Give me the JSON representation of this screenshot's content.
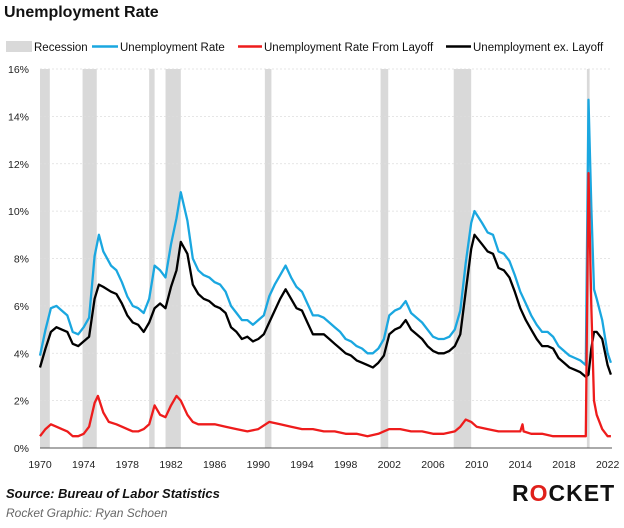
{
  "title": "Unemployment Rate",
  "source": "Source: Bureau of Labor Statistics",
  "credit": "Rocket Graphic: Ryan Schoen",
  "logo": {
    "text_before": "R",
    "text_o": "O",
    "text_after": "CKET",
    "accent": "#e0201b"
  },
  "colors": {
    "recession": "#d9d9d9",
    "unemployment_rate": "#1aa7e0",
    "from_layoff": "#ee1c1c",
    "ex_layoff": "#000000"
  },
  "chart_data": {
    "type": "line",
    "title": "Unemployment Rate",
    "xlabel": "",
    "ylabel": "",
    "xlim": [
      1970,
      2022.4
    ],
    "ylim": [
      0,
      16
    ],
    "y_ticks": [
      "0%",
      "2%",
      "4%",
      "6%",
      "8%",
      "10%",
      "12%",
      "14%",
      "16%"
    ],
    "x_ticks": [
      "1970",
      "1974",
      "1978",
      "1982",
      "1986",
      "1990",
      "1994",
      "1998",
      "2002",
      "2006",
      "2010",
      "2014",
      "2018",
      "2022"
    ],
    "grid": true,
    "legend": "top",
    "recessions": [
      [
        1970.0,
        1970.9
      ],
      [
        1973.9,
        1975.2
      ],
      [
        1980.0,
        1980.5
      ],
      [
        1981.5,
        1982.9
      ],
      [
        1990.6,
        1991.2
      ],
      [
        2001.2,
        2001.9
      ],
      [
        2007.9,
        2009.5
      ],
      [
        2020.1,
        2020.35
      ]
    ],
    "series": [
      {
        "name": "Recession",
        "kind": "band"
      },
      {
        "name": "Unemployment Rate",
        "points": [
          [
            1970.0,
            3.9
          ],
          [
            1970.5,
            5.0
          ],
          [
            1971.0,
            5.9
          ],
          [
            1971.5,
            6.0
          ],
          [
            1972.0,
            5.8
          ],
          [
            1972.5,
            5.6
          ],
          [
            1973.0,
            4.9
          ],
          [
            1973.5,
            4.8
          ],
          [
            1974.0,
            5.1
          ],
          [
            1974.5,
            5.5
          ],
          [
            1975.0,
            8.1
          ],
          [
            1975.4,
            9.0
          ],
          [
            1975.8,
            8.3
          ],
          [
            1976.5,
            7.7
          ],
          [
            1977.0,
            7.5
          ],
          [
            1977.5,
            7.0
          ],
          [
            1978.0,
            6.4
          ],
          [
            1978.5,
            6.0
          ],
          [
            1979.0,
            5.9
          ],
          [
            1979.5,
            5.7
          ],
          [
            1980.0,
            6.3
          ],
          [
            1980.5,
            7.7
          ],
          [
            1981.0,
            7.5
          ],
          [
            1981.5,
            7.2
          ],
          [
            1982.0,
            8.6
          ],
          [
            1982.5,
            9.7
          ],
          [
            1982.9,
            10.8
          ],
          [
            1983.5,
            9.6
          ],
          [
            1984.0,
            8.0
          ],
          [
            1984.5,
            7.5
          ],
          [
            1985.0,
            7.3
          ],
          [
            1985.5,
            7.2
          ],
          [
            1986.0,
            7.0
          ],
          [
            1986.5,
            6.9
          ],
          [
            1987.0,
            6.6
          ],
          [
            1987.5,
            6.0
          ],
          [
            1988.0,
            5.7
          ],
          [
            1988.5,
            5.4
          ],
          [
            1989.0,
            5.4
          ],
          [
            1989.5,
            5.2
          ],
          [
            1990.0,
            5.4
          ],
          [
            1990.5,
            5.6
          ],
          [
            1991.0,
            6.4
          ],
          [
            1991.5,
            6.9
          ],
          [
            1992.0,
            7.3
          ],
          [
            1992.5,
            7.7
          ],
          [
            1993.0,
            7.2
          ],
          [
            1993.5,
            6.8
          ],
          [
            1994.0,
            6.6
          ],
          [
            1994.5,
            6.1
          ],
          [
            1995.0,
            5.6
          ],
          [
            1995.5,
            5.6
          ],
          [
            1996.0,
            5.5
          ],
          [
            1996.5,
            5.3
          ],
          [
            1997.0,
            5.1
          ],
          [
            1997.5,
            4.9
          ],
          [
            1998.0,
            4.6
          ],
          [
            1998.5,
            4.5
          ],
          [
            1999.0,
            4.3
          ],
          [
            1999.5,
            4.2
          ],
          [
            2000.0,
            4.0
          ],
          [
            2000.5,
            4.0
          ],
          [
            2001.0,
            4.2
          ],
          [
            2001.5,
            4.6
          ],
          [
            2002.0,
            5.6
          ],
          [
            2002.5,
            5.8
          ],
          [
            2003.0,
            5.9
          ],
          [
            2003.5,
            6.2
          ],
          [
            2004.0,
            5.7
          ],
          [
            2004.5,
            5.5
          ],
          [
            2005.0,
            5.3
          ],
          [
            2005.5,
            5.0
          ],
          [
            2006.0,
            4.7
          ],
          [
            2006.5,
            4.6
          ],
          [
            2007.0,
            4.6
          ],
          [
            2007.5,
            4.7
          ],
          [
            2008.0,
            5.0
          ],
          [
            2008.5,
            5.8
          ],
          [
            2009.0,
            7.8
          ],
          [
            2009.5,
            9.5
          ],
          [
            2009.8,
            10.0
          ],
          [
            2010.5,
            9.5
          ],
          [
            2011.0,
            9.1
          ],
          [
            2011.5,
            9.0
          ],
          [
            2012.0,
            8.3
          ],
          [
            2012.5,
            8.2
          ],
          [
            2013.0,
            7.9
          ],
          [
            2013.5,
            7.3
          ],
          [
            2014.0,
            6.6
          ],
          [
            2014.5,
            6.1
          ],
          [
            2015.0,
            5.6
          ],
          [
            2015.5,
            5.2
          ],
          [
            2016.0,
            4.9
          ],
          [
            2016.5,
            4.9
          ],
          [
            2017.0,
            4.7
          ],
          [
            2017.5,
            4.3
          ],
          [
            2018.0,
            4.1
          ],
          [
            2018.5,
            3.9
          ],
          [
            2019.0,
            3.8
          ],
          [
            2019.5,
            3.7
          ],
          [
            2020.0,
            3.5
          ],
          [
            2020.25,
            14.7
          ],
          [
            2020.5,
            10.2
          ],
          [
            2020.75,
            6.7
          ],
          [
            2021.0,
            6.3
          ],
          [
            2021.5,
            5.4
          ],
          [
            2022.0,
            4.0
          ],
          [
            2022.3,
            3.6
          ]
        ]
      },
      {
        "name": "Unemployment Rate From Layoff",
        "points": [
          [
            1970.0,
            0.5
          ],
          [
            1970.5,
            0.8
          ],
          [
            1971.0,
            1.0
          ],
          [
            1971.5,
            0.9
          ],
          [
            1972.0,
            0.8
          ],
          [
            1972.5,
            0.7
          ],
          [
            1973.0,
            0.5
          ],
          [
            1973.5,
            0.5
          ],
          [
            1974.0,
            0.6
          ],
          [
            1974.5,
            0.9
          ],
          [
            1975.0,
            1.9
          ],
          [
            1975.3,
            2.2
          ],
          [
            1975.8,
            1.5
          ],
          [
            1976.3,
            1.1
          ],
          [
            1977.0,
            1.0
          ],
          [
            1977.5,
            0.9
          ],
          [
            1978.0,
            0.8
          ],
          [
            1978.5,
            0.7
          ],
          [
            1979.0,
            0.7
          ],
          [
            1979.5,
            0.8
          ],
          [
            1980.0,
            1.0
          ],
          [
            1980.5,
            1.8
          ],
          [
            1981.0,
            1.4
          ],
          [
            1981.5,
            1.3
          ],
          [
            1982.0,
            1.8
          ],
          [
            1982.5,
            2.2
          ],
          [
            1982.9,
            2.0
          ],
          [
            1983.5,
            1.4
          ],
          [
            1984.0,
            1.1
          ],
          [
            1984.5,
            1.0
          ],
          [
            1985.0,
            1.0
          ],
          [
            1986.0,
            1.0
          ],
          [
            1987.0,
            0.9
          ],
          [
            1988.0,
            0.8
          ],
          [
            1989.0,
            0.7
          ],
          [
            1990.0,
            0.8
          ],
          [
            1991.0,
            1.1
          ],
          [
            1992.0,
            1.0
          ],
          [
            1993.0,
            0.9
          ],
          [
            1994.0,
            0.8
          ],
          [
            1995.0,
            0.8
          ],
          [
            1996.0,
            0.7
          ],
          [
            1997.0,
            0.7
          ],
          [
            1998.0,
            0.6
          ],
          [
            1999.0,
            0.6
          ],
          [
            2000.0,
            0.5
          ],
          [
            2001.0,
            0.6
          ],
          [
            2002.0,
            0.8
          ],
          [
            2003.0,
            0.8
          ],
          [
            2004.0,
            0.7
          ],
          [
            2005.0,
            0.7
          ],
          [
            2006.0,
            0.6
          ],
          [
            2007.0,
            0.6
          ],
          [
            2008.0,
            0.7
          ],
          [
            2008.5,
            0.9
          ],
          [
            2009.0,
            1.2
          ],
          [
            2009.5,
            1.1
          ],
          [
            2010.0,
            0.9
          ],
          [
            2011.0,
            0.8
          ],
          [
            2012.0,
            0.7
          ],
          [
            2013.0,
            0.7
          ],
          [
            2014.0,
            0.7
          ],
          [
            2014.2,
            1.0
          ],
          [
            2014.3,
            0.7
          ],
          [
            2015.0,
            0.6
          ],
          [
            2016.0,
            0.6
          ],
          [
            2017.0,
            0.5
          ],
          [
            2018.0,
            0.5
          ],
          [
            2019.0,
            0.5
          ],
          [
            2020.0,
            0.5
          ],
          [
            2020.25,
            11.6
          ],
          [
            2020.5,
            6.0
          ],
          [
            2020.75,
            2.0
          ],
          [
            2021.0,
            1.4
          ],
          [
            2021.5,
            0.8
          ],
          [
            2022.0,
            0.5
          ],
          [
            2022.3,
            0.5
          ]
        ]
      },
      {
        "name": "Unemployment ex. Layoff",
        "points": [
          [
            1970.0,
            3.4
          ],
          [
            1970.5,
            4.2
          ],
          [
            1971.0,
            4.9
          ],
          [
            1971.5,
            5.1
          ],
          [
            1972.0,
            5.0
          ],
          [
            1972.5,
            4.9
          ],
          [
            1973.0,
            4.4
          ],
          [
            1973.5,
            4.3
          ],
          [
            1974.0,
            4.5
          ],
          [
            1974.5,
            4.7
          ],
          [
            1975.0,
            6.3
          ],
          [
            1975.4,
            6.9
          ],
          [
            1975.8,
            6.8
          ],
          [
            1976.5,
            6.6
          ],
          [
            1977.0,
            6.5
          ],
          [
            1977.5,
            6.1
          ],
          [
            1978.0,
            5.6
          ],
          [
            1978.5,
            5.3
          ],
          [
            1979.0,
            5.2
          ],
          [
            1979.5,
            4.9
          ],
          [
            1980.0,
            5.3
          ],
          [
            1980.5,
            5.9
          ],
          [
            1981.0,
            6.1
          ],
          [
            1981.5,
            5.9
          ],
          [
            1982.0,
            6.8
          ],
          [
            1982.5,
            7.5
          ],
          [
            1982.9,
            8.7
          ],
          [
            1983.5,
            8.2
          ],
          [
            1984.0,
            6.9
          ],
          [
            1984.5,
            6.5
          ],
          [
            1985.0,
            6.3
          ],
          [
            1985.5,
            6.2
          ],
          [
            1986.0,
            6.0
          ],
          [
            1986.5,
            5.9
          ],
          [
            1987.0,
            5.7
          ],
          [
            1987.5,
            5.1
          ],
          [
            1988.0,
            4.9
          ],
          [
            1988.5,
            4.6
          ],
          [
            1989.0,
            4.7
          ],
          [
            1989.5,
            4.5
          ],
          [
            1990.0,
            4.6
          ],
          [
            1990.5,
            4.8
          ],
          [
            1991.0,
            5.3
          ],
          [
            1991.5,
            5.8
          ],
          [
            1992.0,
            6.3
          ],
          [
            1992.5,
            6.7
          ],
          [
            1993.0,
            6.3
          ],
          [
            1993.5,
            5.9
          ],
          [
            1994.0,
            5.8
          ],
          [
            1994.5,
            5.3
          ],
          [
            1995.0,
            4.8
          ],
          [
            1995.5,
            4.8
          ],
          [
            1996.0,
            4.8
          ],
          [
            1996.5,
            4.6
          ],
          [
            1997.0,
            4.4
          ],
          [
            1997.5,
            4.2
          ],
          [
            1998.0,
            4.0
          ],
          [
            1998.5,
            3.9
          ],
          [
            1999.0,
            3.7
          ],
          [
            1999.5,
            3.6
          ],
          [
            2000.0,
            3.5
          ],
          [
            2000.5,
            3.4
          ],
          [
            2001.0,
            3.6
          ],
          [
            2001.5,
            3.9
          ],
          [
            2002.0,
            4.8
          ],
          [
            2002.5,
            5.0
          ],
          [
            2003.0,
            5.1
          ],
          [
            2003.5,
            5.4
          ],
          [
            2004.0,
            5.0
          ],
          [
            2004.5,
            4.8
          ],
          [
            2005.0,
            4.6
          ],
          [
            2005.5,
            4.3
          ],
          [
            2006.0,
            4.1
          ],
          [
            2006.5,
            4.0
          ],
          [
            2007.0,
            4.0
          ],
          [
            2007.5,
            4.1
          ],
          [
            2008.0,
            4.3
          ],
          [
            2008.5,
            4.8
          ],
          [
            2009.0,
            6.6
          ],
          [
            2009.5,
            8.4
          ],
          [
            2009.8,
            9.0
          ],
          [
            2010.5,
            8.6
          ],
          [
            2011.0,
            8.3
          ],
          [
            2011.5,
            8.2
          ],
          [
            2012.0,
            7.6
          ],
          [
            2012.5,
            7.5
          ],
          [
            2013.0,
            7.2
          ],
          [
            2013.5,
            6.6
          ],
          [
            2014.0,
            5.9
          ],
          [
            2014.5,
            5.4
          ],
          [
            2015.0,
            5.0
          ],
          [
            2015.5,
            4.6
          ],
          [
            2016.0,
            4.3
          ],
          [
            2016.5,
            4.3
          ],
          [
            2017.0,
            4.2
          ],
          [
            2017.5,
            3.8
          ],
          [
            2018.0,
            3.6
          ],
          [
            2018.5,
            3.4
          ],
          [
            2019.0,
            3.3
          ],
          [
            2019.5,
            3.2
          ],
          [
            2020.0,
            3.0
          ],
          [
            2020.25,
            3.1
          ],
          [
            2020.5,
            4.2
          ],
          [
            2020.75,
            4.9
          ],
          [
            2021.0,
            4.9
          ],
          [
            2021.5,
            4.6
          ],
          [
            2022.0,
            3.5
          ],
          [
            2022.3,
            3.1
          ]
        ]
      }
    ]
  }
}
